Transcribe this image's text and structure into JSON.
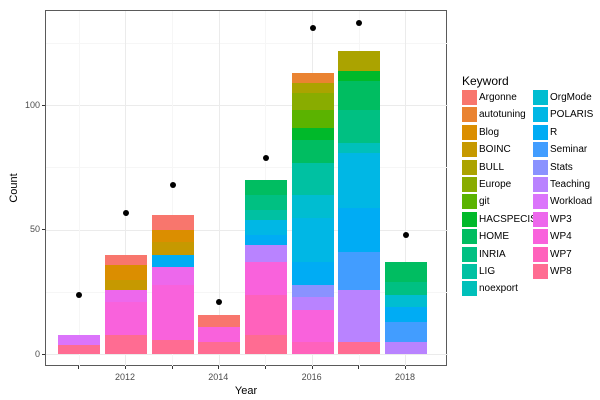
{
  "figure": {
    "x_axis": {
      "title": "Year",
      "tick_labels": [
        "2012",
        "2014",
        "2016",
        "2018"
      ],
      "labeled_years": [
        2012,
        2014,
        2016,
        2018
      ]
    },
    "y_axis": {
      "title": "Count",
      "tick_labels": [
        "0",
        "50",
        "100"
      ],
      "tick_values": [
        0,
        50,
        100
      ]
    },
    "legend": {
      "title": "Keyword",
      "entries": [
        {
          "label": "Argonne",
          "color": "#F8766D"
        },
        {
          "label": "autotuning",
          "color": "#EA8331"
        },
        {
          "label": "Blog",
          "color": "#DB8E00"
        },
        {
          "label": "BOINC",
          "color": "#C69900"
        },
        {
          "label": "BULL",
          "color": "#ABA300"
        },
        {
          "label": "Europe",
          "color": "#89AC00"
        },
        {
          "label": "git",
          "color": "#5BB300"
        },
        {
          "label": "HACSPECIS",
          "color": "#00B92A"
        },
        {
          "label": "HOME",
          "color": "#00BD61"
        },
        {
          "label": "INRIA",
          "color": "#00C082"
        },
        {
          "label": "LIG",
          "color": "#00C1A2"
        },
        {
          "label": "noexport",
          "color": "#00C0BA"
        },
        {
          "label": "OrgMode",
          "color": "#00BDD1"
        },
        {
          "label": "POLARIS",
          "color": "#00B7E5"
        },
        {
          "label": "R",
          "color": "#00ACF4"
        },
        {
          "label": "Seminar",
          "color": "#429DFF"
        },
        {
          "label": "Stats",
          "color": "#8A92FF"
        },
        {
          "label": "Teaching",
          "color": "#B983FF"
        },
        {
          "label": "Workload",
          "color": "#DB74FB"
        },
        {
          "label": "WP3",
          "color": "#ED68EC"
        },
        {
          "label": "WP4",
          "color": "#F962DC"
        },
        {
          "label": "WP7",
          "color": "#FF62BC"
        },
        {
          "label": "WP8",
          "color": "#FF6C92"
        }
      ]
    }
  },
  "chart_data": {
    "type": "bar",
    "stacked": true,
    "title": "",
    "xlabel": "Year",
    "ylabel": "Count",
    "x": [
      2011,
      2012,
      2013,
      2014,
      2015,
      2016,
      2017,
      2018
    ],
    "ylim": [
      0,
      138
    ],
    "y_gridlines_major": [
      0,
      50,
      100
    ],
    "y_gridlines_minor": [
      25,
      75,
      125
    ],
    "legend_position": "right",
    "series": [
      {
        "name": "Argonne",
        "values": [
          0,
          4,
          6,
          5,
          0,
          0,
          0,
          0
        ]
      },
      {
        "name": "autotuning",
        "values": [
          0,
          0,
          0,
          0,
          0,
          4,
          0,
          0
        ]
      },
      {
        "name": "Blog",
        "values": [
          0,
          6,
          5,
          0,
          0,
          0,
          0,
          0
        ]
      },
      {
        "name": "BOINC",
        "values": [
          0,
          4,
          5,
          0,
          0,
          0,
          0,
          0
        ]
      },
      {
        "name": "BULL",
        "values": [
          0,
          0,
          0,
          0,
          0,
          4,
          8,
          0
        ]
      },
      {
        "name": "Europe",
        "values": [
          0,
          0,
          0,
          0,
          0,
          7,
          0,
          0
        ]
      },
      {
        "name": "git",
        "values": [
          0,
          0,
          0,
          0,
          0,
          7,
          0,
          0
        ]
      },
      {
        "name": "HACSPECIS",
        "values": [
          0,
          0,
          0,
          0,
          0,
          5,
          4,
          0
        ]
      },
      {
        "name": "HOME",
        "values": [
          0,
          0,
          0,
          0,
          6,
          9,
          12,
          8
        ]
      },
      {
        "name": "INRIA",
        "values": [
          0,
          0,
          0,
          0,
          6,
          0,
          13,
          5
        ]
      },
      {
        "name": "LIG",
        "values": [
          0,
          0,
          0,
          0,
          4,
          13,
          0,
          0
        ]
      },
      {
        "name": "noexport",
        "values": [
          0,
          0,
          0,
          0,
          0,
          0,
          4,
          0
        ]
      },
      {
        "name": "OrgMode",
        "values": [
          0,
          0,
          0,
          0,
          0,
          9,
          0,
          5
        ]
      },
      {
        "name": "POLARIS",
        "values": [
          0,
          0,
          0,
          0,
          6,
          18,
          22,
          0
        ]
      },
      {
        "name": "R",
        "values": [
          0,
          0,
          5,
          0,
          4,
          9,
          18,
          6
        ]
      },
      {
        "name": "Seminar",
        "values": [
          0,
          0,
          0,
          0,
          0,
          0,
          15,
          8
        ]
      },
      {
        "name": "Stats",
        "values": [
          0,
          0,
          0,
          0,
          0,
          5,
          0,
          0
        ]
      },
      {
        "name": "Teaching",
        "values": [
          0,
          0,
          0,
          0,
          7,
          5,
          21,
          5
        ]
      },
      {
        "name": "Workload",
        "values": [
          4,
          0,
          0,
          0,
          0,
          0,
          0,
          0
        ]
      },
      {
        "name": "WP3",
        "values": [
          0,
          5,
          7,
          0,
          0,
          0,
          0,
          0
        ]
      },
      {
        "name": "WP4",
        "values": [
          0,
          13,
          22,
          6,
          13,
          13,
          0,
          0
        ]
      },
      {
        "name": "WP7",
        "values": [
          0,
          0,
          0,
          0,
          16,
          5,
          0,
          0
        ]
      },
      {
        "name": "WP8",
        "values": [
          4,
          8,
          6,
          5,
          8,
          0,
          5,
          0
        ]
      }
    ],
    "totals": [
      8,
      40,
      56,
      16,
      70,
      113,
      122,
      37
    ],
    "points": {
      "name": "count-dots",
      "color": "#000000",
      "values": [
        24,
        57,
        68,
        21,
        79,
        131,
        133,
        48
      ]
    }
  }
}
